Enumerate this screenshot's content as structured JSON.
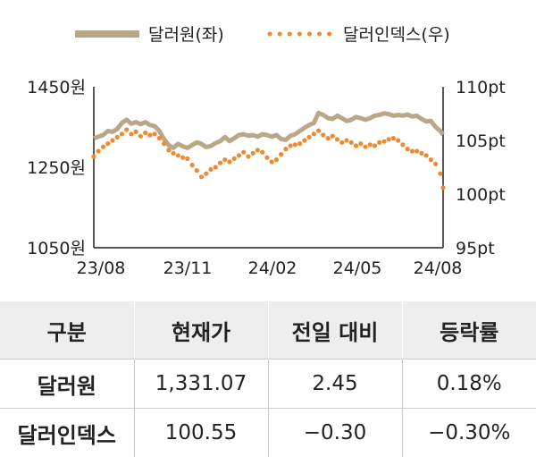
{
  "chart_data": {
    "type": "line",
    "legend": [
      {
        "name": "달러원(좌)",
        "color": "#b9a888",
        "style": "solid"
      },
      {
        "name": "달러인덱스(우)",
        "color": "#ee8a33",
        "style": "dotted"
      }
    ],
    "legend_position": "top",
    "x_ticks": [
      "23/08",
      "23/11",
      "24/02",
      "24/05",
      "24/08"
    ],
    "y_left": {
      "ticks": [
        "1450원",
        "1250원",
        "1050원"
      ],
      "range": [
        1050,
        1450
      ]
    },
    "y_right": {
      "ticks": [
        "110pt",
        "105pt",
        "100pt",
        "95pt"
      ],
      "range": [
        95,
        110
      ]
    },
    "grid": false,
    "series": [
      {
        "name": "달러원(좌)",
        "axis": "left",
        "points": [
          [
            0,
            1322
          ],
          [
            5,
            1326
          ],
          [
            10,
            1330
          ],
          [
            15,
            1340
          ],
          [
            20,
            1338
          ],
          [
            25,
            1345
          ],
          [
            30,
            1360
          ],
          [
            35,
            1368
          ],
          [
            40,
            1358
          ],
          [
            45,
            1362
          ],
          [
            50,
            1357
          ],
          [
            55,
            1362
          ],
          [
            60,
            1355
          ],
          [
            65,
            1352
          ],
          [
            70,
            1340
          ],
          [
            75,
            1320
          ],
          [
            80,
            1305
          ],
          [
            85,
            1298
          ],
          [
            90,
            1308
          ],
          [
            95,
            1302
          ],
          [
            100,
            1298
          ],
          [
            105,
            1305
          ],
          [
            110,
            1312
          ],
          [
            115,
            1308
          ],
          [
            120,
            1300
          ],
          [
            125,
            1303
          ],
          [
            130,
            1310
          ],
          [
            135,
            1315
          ],
          [
            140,
            1325
          ],
          [
            145,
            1315
          ],
          [
            150,
            1322
          ],
          [
            155,
            1330
          ],
          [
            160,
            1332
          ],
          [
            165,
            1328
          ],
          [
            170,
            1330
          ],
          [
            175,
            1326
          ],
          [
            180,
            1332
          ],
          [
            185,
            1330
          ],
          [
            190,
            1326
          ],
          [
            195,
            1330
          ],
          [
            200,
            1320
          ],
          [
            205,
            1318
          ],
          [
            210,
            1328
          ],
          [
            215,
            1332
          ],
          [
            220,
            1340
          ],
          [
            225,
            1348
          ],
          [
            230,
            1355
          ],
          [
            235,
            1360
          ],
          [
            240,
            1385
          ],
          [
            245,
            1380
          ],
          [
            250,
            1372
          ],
          [
            255,
            1370
          ],
          [
            260,
            1378
          ],
          [
            265,
            1372
          ],
          [
            270,
            1365
          ],
          [
            275,
            1368
          ],
          [
            280,
            1375
          ],
          [
            285,
            1372
          ],
          [
            290,
            1368
          ],
          [
            295,
            1372
          ],
          [
            300,
            1378
          ],
          [
            305,
            1380
          ],
          [
            310,
            1384
          ],
          [
            315,
            1382
          ],
          [
            320,
            1378
          ],
          [
            325,
            1380
          ],
          [
            330,
            1378
          ],
          [
            335,
            1381
          ],
          [
            340,
            1376
          ],
          [
            345,
            1378
          ],
          [
            350,
            1370
          ],
          [
            355,
            1364
          ],
          [
            360,
            1365
          ],
          [
            365,
            1350
          ],
          [
            370,
            1340
          ],
          [
            373,
            1331
          ]
        ]
      },
      {
        "name": "달러인덱스(우)",
        "axis": "right",
        "points": [
          [
            0,
            103.5
          ],
          [
            5,
            104.0
          ],
          [
            10,
            104.4
          ],
          [
            15,
            104.7
          ],
          [
            20,
            105.0
          ],
          [
            25,
            105.3
          ],
          [
            30,
            105.6
          ],
          [
            35,
            106.0
          ],
          [
            40,
            105.6
          ],
          [
            45,
            105.8
          ],
          [
            50,
            105.4
          ],
          [
            55,
            105.7
          ],
          [
            60,
            105.5
          ],
          [
            65,
            105.6
          ],
          [
            70,
            105.2
          ],
          [
            75,
            104.7
          ],
          [
            80,
            104.1
          ],
          [
            85,
            103.8
          ],
          [
            90,
            103.6
          ],
          [
            95,
            103.4
          ],
          [
            100,
            103.3
          ],
          [
            105,
            102.7
          ],
          [
            110,
            102.2
          ],
          [
            115,
            101.6
          ],
          [
            120,
            101.9
          ],
          [
            125,
            102.3
          ],
          [
            130,
            102.5
          ],
          [
            135,
            102.9
          ],
          [
            140,
            103.2
          ],
          [
            145,
            103.0
          ],
          [
            150,
            103.3
          ],
          [
            155,
            103.6
          ],
          [
            160,
            103.9
          ],
          [
            165,
            103.5
          ],
          [
            170,
            103.8
          ],
          [
            175,
            104.1
          ],
          [
            180,
            103.9
          ],
          [
            185,
            103.4
          ],
          [
            190,
            103.0
          ],
          [
            195,
            103.2
          ],
          [
            200,
            103.7
          ],
          [
            205,
            104.2
          ],
          [
            210,
            104.5
          ],
          [
            215,
            104.6
          ],
          [
            220,
            104.7
          ],
          [
            225,
            105.0
          ],
          [
            230,
            105.3
          ],
          [
            235,
            105.6
          ],
          [
            240,
            105.9
          ],
          [
            245,
            105.5
          ],
          [
            250,
            105.2
          ],
          [
            255,
            105.4
          ],
          [
            260,
            105.1
          ],
          [
            265,
            104.8
          ],
          [
            270,
            105.0
          ],
          [
            275,
            104.8
          ],
          [
            280,
            104.5
          ],
          [
            285,
            104.7
          ],
          [
            290,
            104.4
          ],
          [
            295,
            104.6
          ],
          [
            300,
            104.5
          ],
          [
            305,
            104.8
          ],
          [
            310,
            104.9
          ],
          [
            315,
            105.1
          ],
          [
            320,
            105.2
          ],
          [
            325,
            105.0
          ],
          [
            330,
            104.6
          ],
          [
            335,
            104.2
          ],
          [
            340,
            104.0
          ],
          [
            345,
            104.0
          ],
          [
            350,
            103.8
          ],
          [
            355,
            103.6
          ],
          [
            360,
            103.2
          ],
          [
            365,
            102.8
          ],
          [
            370,
            101.9
          ],
          [
            373,
            100.6
          ]
        ]
      }
    ]
  },
  "table": {
    "headers": [
      "구분",
      "현재가",
      "전일 대비",
      "등락률"
    ],
    "rows": [
      [
        "달러원",
        "1,331.07",
        "2.45",
        "0.18%"
      ],
      [
        "달러인덱스",
        "100.55",
        "−0.30",
        "−0.30%"
      ]
    ]
  }
}
